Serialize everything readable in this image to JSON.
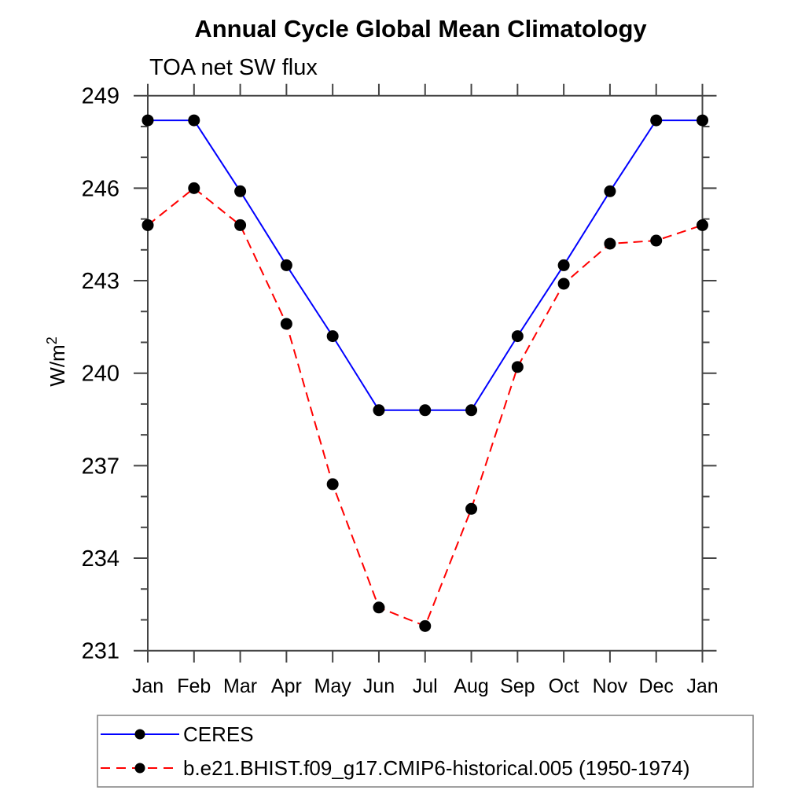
{
  "page": {
    "background": "#ffffff"
  },
  "colors": {
    "axis": "#444444",
    "text": "#000000",
    "marker": "#000000",
    "ceres_line": "#0000ff",
    "model_line": "#ff0000",
    "legend_border": "#808080"
  },
  "chart_data": {
    "type": "line",
    "title": "Annual Cycle Global Mean Climatology",
    "subtitle": "TOA net SW flux",
    "ylabel": "W/m²",
    "xlabel": "",
    "categories": [
      "Jan",
      "Feb",
      "Mar",
      "Apr",
      "May",
      "Jun",
      "Jul",
      "Aug",
      "Sep",
      "Oct",
      "Nov",
      "Dec",
      "Jan"
    ],
    "ylim": [
      231,
      249
    ],
    "yticks_major": [
      231,
      234,
      237,
      240,
      243,
      246,
      249
    ],
    "ytick_labels": [
      "231",
      "234",
      "237",
      "240",
      "243",
      "246",
      "249"
    ],
    "yminor_step": 1,
    "grid": false,
    "legend_position": "bottom-left",
    "series": [
      {
        "name": "CERES",
        "color": "#0000ff",
        "line_style": "solid",
        "marker": "filled-circle",
        "marker_color": "#000000",
        "values": [
          248.2,
          248.2,
          245.9,
          243.5,
          241.2,
          238.8,
          238.8,
          238.8,
          241.2,
          243.5,
          245.9,
          248.2,
          248.2
        ]
      },
      {
        "name": "b.e21.BHIST.f09_g17.CMIP6-historical.005 (1950-1974)",
        "color": "#ff0000",
        "line_style": "dashed",
        "marker": "filled-circle",
        "marker_color": "#000000",
        "values": [
          244.8,
          246.0,
          244.8,
          241.6,
          236.4,
          232.4,
          231.8,
          235.6,
          240.2,
          242.9,
          244.2,
          244.3,
          244.8
        ]
      }
    ]
  }
}
